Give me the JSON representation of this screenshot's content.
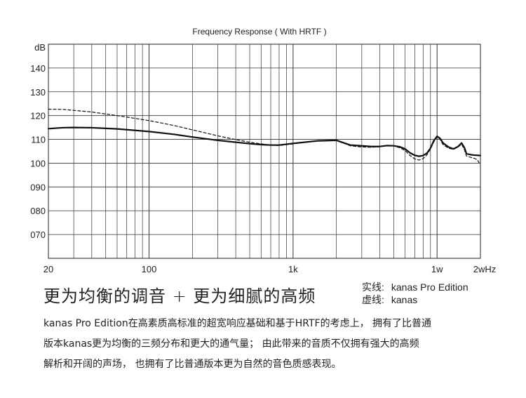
{
  "chart_data": {
    "type": "line",
    "title": "Frequency Response ( With HRTF )",
    "ylabel_unit": "dB",
    "xscale": "log",
    "xlim": [
      20,
      20000
    ],
    "ylim": [
      60,
      150
    ],
    "y_ticks": [
      {
        "value": 140,
        "label": "140"
      },
      {
        "value": 130,
        "label": "130"
      },
      {
        "value": 120,
        "label": "120"
      },
      {
        "value": 110,
        "label": "110"
      },
      {
        "value": 100,
        "label": "100"
      },
      {
        "value": 90,
        "label": "090"
      },
      {
        "value": 80,
        "label": "080"
      },
      {
        "value": 70,
        "label": "070"
      }
    ],
    "x_ticks": [
      {
        "value": 20,
        "label": "20"
      },
      {
        "value": 100,
        "label": "100"
      },
      {
        "value": 1000,
        "label": "1k"
      },
      {
        "value": 10000,
        "label": "1w"
      },
      {
        "value": 20000,
        "label": "2wHz"
      }
    ],
    "grid": true,
    "legend_position": "bottom-right",
    "series": [
      {
        "name": "kanas Pro Edition",
        "style": "solid",
        "x": [
          20,
          25,
          30,
          40,
          60,
          100,
          150,
          200,
          300,
          400,
          500,
          600,
          700,
          800,
          1000,
          1200,
          1500,
          2000,
          2500,
          3000,
          3500,
          4000,
          4500,
          5000,
          5500,
          6000,
          6500,
          7000,
          7500,
          8000,
          8500,
          9000,
          9500,
          10000,
          10500,
          11000,
          12000,
          13000,
          14000,
          14800,
          15500,
          16000,
          17000,
          18000,
          19000,
          20000
        ],
        "y": [
          114.5,
          114.9,
          115.0,
          114.9,
          114.4,
          113.3,
          112.1,
          111.0,
          109.6,
          108.8,
          108.2,
          107.8,
          107.6,
          107.6,
          108.3,
          108.8,
          109.4,
          109.6,
          107.6,
          107.3,
          107.0,
          107.0,
          107.4,
          107.3,
          106.9,
          106.0,
          104.3,
          103.3,
          102.9,
          103.2,
          104.2,
          106.3,
          109.5,
          111.3,
          110.4,
          108.5,
          106.8,
          106.0,
          107.0,
          108.5,
          106.5,
          104.0,
          103.6,
          103.4,
          103.3,
          103.2
        ]
      },
      {
        "name": "kanas",
        "style": "dashed",
        "x": [
          20,
          25,
          30,
          40,
          60,
          100,
          150,
          200,
          300,
          400,
          500,
          600,
          700,
          800,
          1000,
          1200,
          1500,
          2000,
          2500,
          3000,
          3500,
          4000,
          4500,
          5000,
          5500,
          6000,
          6500,
          7000,
          7500,
          8000,
          8500,
          9000,
          9500,
          10000,
          10500,
          11000,
          12000,
          13000,
          14000,
          14800,
          15500,
          16000,
          17000,
          18000,
          19000,
          20000
        ],
        "y": [
          122.7,
          122.6,
          122.2,
          121.5,
          120.0,
          117.9,
          115.8,
          114.0,
          111.5,
          109.9,
          108.8,
          108.1,
          107.6,
          107.4,
          108.1,
          108.7,
          109.4,
          109.5,
          107.3,
          106.8,
          106.7,
          106.9,
          107.4,
          107.2,
          106.5,
          105.3,
          103.2,
          101.8,
          101.3,
          101.9,
          103.5,
          106.0,
          109.0,
          111.0,
          110.0,
          107.8,
          106.3,
          105.8,
          106.8,
          108.0,
          105.6,
          103.0,
          102.5,
          102.1,
          101.5,
          99.3
        ]
      }
    ]
  },
  "legend": {
    "solid_key": "实线:",
    "solid_name": "kanas Pro Edition",
    "dashed_key": "虚线:",
    "dashed_name": "kanas"
  },
  "headline": "更为均衡的调音 + 更为细腻的高频",
  "description": {
    "line1": "kanas Pro Edition在高素质高标准的超宽响应基础和基于HRTF的考虑上， 拥有了比普通",
    "line2": "版本kanas更为均衡的三频分布和更大的通气量； 由此带来的音质不仅拥有强大的高频",
    "line3": "解析和开阔的声场， 也拥有了比普通版本更为自然的音色质感表现。"
  }
}
